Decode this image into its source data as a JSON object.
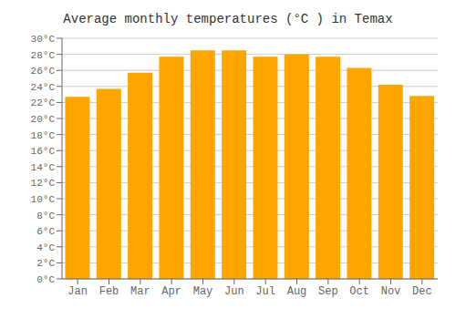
{
  "chart_data": {
    "type": "bar",
    "title": "Average monthly temperatures (°C ) in Temax",
    "categories": [
      "Jan",
      "Feb",
      "Mar",
      "Apr",
      "May",
      "Jun",
      "Jul",
      "Aug",
      "Sep",
      "Oct",
      "Nov",
      "Dec"
    ],
    "values": [
      22.7,
      23.7,
      25.7,
      27.7,
      28.5,
      28.5,
      27.7,
      28.0,
      27.7,
      26.3,
      24.2,
      22.8
    ],
    "color": "#FFA500",
    "ylim": [
      0,
      30
    ],
    "yticks": [
      {
        "value": 0,
        "label": "0°C"
      },
      {
        "value": 2,
        "label": "2°C"
      },
      {
        "value": 4,
        "label": "4°C"
      },
      {
        "value": 6,
        "label": "6°C"
      },
      {
        "value": 8,
        "label": "8°C"
      },
      {
        "value": 10,
        "label": "10°C"
      },
      {
        "value": 12,
        "label": "12°C"
      },
      {
        "value": 14,
        "label": "14°C"
      },
      {
        "value": 16,
        "label": "16°C"
      },
      {
        "value": 18,
        "label": "18°C"
      },
      {
        "value": 20,
        "label": "20°C"
      },
      {
        "value": 22,
        "label": "22°C"
      },
      {
        "value": 24,
        "label": "24°C"
      },
      {
        "value": 26,
        "label": "26°C"
      },
      {
        "value": 28,
        "label": "28°C"
      },
      {
        "value": 30,
        "label": "30°C"
      }
    ],
    "grid": true
  }
}
